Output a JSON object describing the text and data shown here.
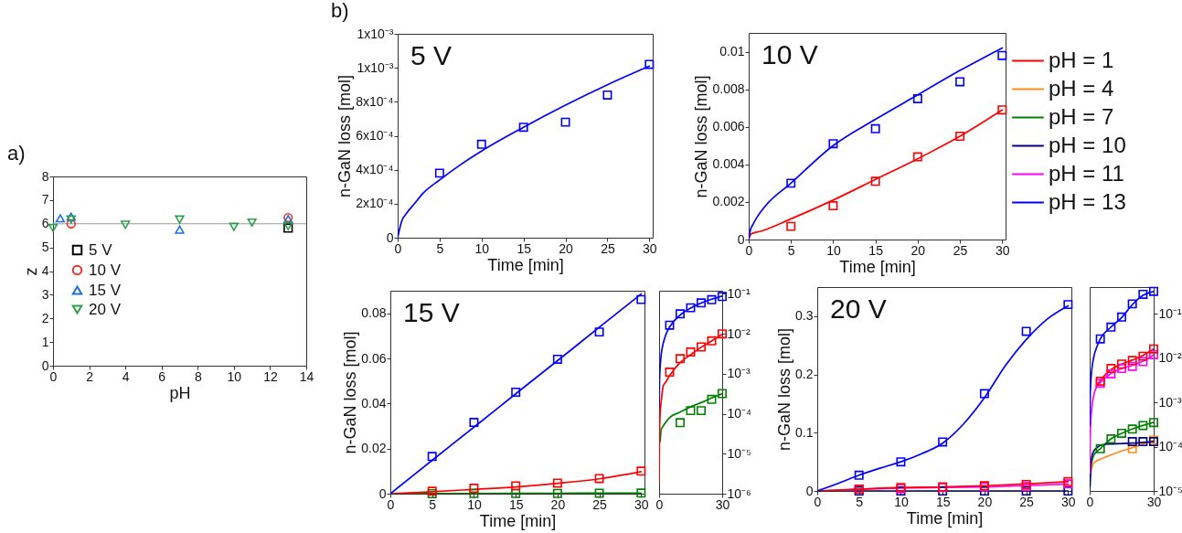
{
  "chart_data": [
    {
      "type": "scatter",
      "title": "a)",
      "xlabel": "pH",
      "ylabel": "z",
      "xlim": [
        0,
        14
      ],
      "xticks": [
        0,
        2,
        4,
        6,
        8,
        10,
        12,
        14
      ],
      "ylim": [
        0,
        8
      ],
      "yticks": [
        0,
        1,
        2,
        3,
        4,
        5,
        6,
        7,
        8
      ],
      "legend": "left",
      "ref_lines": [
        {
          "axis": "y",
          "value": 6,
          "color": "#9a9a9a"
        }
      ],
      "series": [
        {
          "name": "5 V",
          "color": "#000000",
          "marker": "square",
          "x": [
            13
          ],
          "values": [
            5.82
          ]
        },
        {
          "name": "10 V",
          "color": "#f03030",
          "marker": "circle",
          "x": [
            1,
            13
          ],
          "values": [
            6.0,
            6.26
          ]
        },
        {
          "name": "15 V",
          "color": "#1f6fe0",
          "marker": "triangle",
          "x": [
            0.4,
            1,
            7,
            13
          ],
          "values": [
            6.23,
            6.3,
            5.75,
            6.2
          ]
        },
        {
          "name": "20 V",
          "color": "#2ca048",
          "marker": "triangle-down",
          "x": [
            0,
            1,
            4,
            7,
            10,
            11,
            13
          ],
          "values": [
            5.82,
            6.18,
            5.96,
            6.18,
            5.87,
            6.05,
            5.9
          ]
        }
      ]
    },
    {
      "type": "line",
      "title": "b)",
      "xlabel": "Time [min]",
      "ylabel": "n-GaN loss [mol]",
      "annotations": [
        "5 V"
      ],
      "x": [
        5,
        10,
        15,
        20,
        25,
        30
      ],
      "xlim": [
        0,
        30.4
      ],
      "xticks": [
        0,
        5,
        10,
        15,
        20,
        25,
        30
      ],
      "ylim": [
        0,
        0.0012
      ],
      "yticks": [
        0,
        {
          "value": 0.0002,
          "label": "2x10⁻⁴"
        },
        {
          "value": 0.0004,
          "label": "4x10⁻⁴"
        },
        {
          "value": 0.0006,
          "label": "6x10⁻⁴"
        },
        {
          "value": 0.0008,
          "label": "8x10⁻⁴"
        },
        {
          "value": 0.001,
          "label": "1x10⁻³"
        },
        {
          "value": 0.0012,
          "label": "1x10⁻³"
        }
      ],
      "series": [
        {
          "color": "#0000ff",
          "x": [
            0,
            0.5,
            1,
            2,
            3,
            5,
            7.5,
            10,
            15,
            20,
            25,
            30
          ],
          "values": [
            0,
            0.0001,
            0.00014,
            0.0002,
            0.00026,
            0.00034,
            0.00043,
            0.00051,
            0.00065,
            0.00078,
            0.0009,
            0.00101
          ]
        },
        {
          "type": "scatter",
          "marker": "square",
          "color": "#0000ff",
          "values": [
            0.00038,
            0.00055,
            0.00065,
            0.00068,
            0.00084,
            0.00102
          ]
        }
      ]
    },
    {
      "type": "line",
      "xlabel": "Time [min]",
      "ylabel": "n-GaN loss [mol]",
      "annotations": [
        "10 V"
      ],
      "x": [
        5,
        10,
        15,
        20,
        25,
        30
      ],
      "xlim": [
        0,
        30.4
      ],
      "xticks": [
        0,
        5,
        10,
        15,
        20,
        25,
        30
      ],
      "ylim": [
        0,
        0.011
      ],
      "yticks": [
        0,
        0.002,
        0.004,
        0.006,
        0.008,
        0.01
      ],
      "series": [
        {
          "color": "#ff0000",
          "x": [
            0,
            0.3,
            1.5,
            5,
            10,
            15,
            20,
            25,
            30
          ],
          "values": [
            0,
            0.0003,
            0.00045,
            0.0011,
            0.0021,
            0.0032,
            0.0043,
            0.0055,
            0.0069
          ]
        },
        {
          "color": "#0000ff",
          "x": [
            0,
            0.2,
            0.5,
            1,
            2,
            5,
            10,
            15,
            20,
            25,
            30
          ],
          "values": [
            0,
            0.0005,
            0.0008,
            0.0012,
            0.0018,
            0.003,
            0.005,
            0.0064,
            0.0077,
            0.009,
            0.0102
          ]
        },
        {
          "type": "scatter",
          "marker": "square",
          "color": "#ff0000",
          "values": [
            0.0007,
            0.0018,
            0.0031,
            0.0044,
            0.0055,
            0.0069
          ]
        },
        {
          "type": "scatter",
          "marker": "square",
          "color": "#0000ff",
          "values": [
            0.003,
            0.0051,
            0.0059,
            0.0075,
            0.0084,
            0.0098
          ]
        }
      ]
    },
    {
      "type": "line",
      "xlabel": "Time [min]",
      "ylabel": "n-GaN loss [mol]",
      "annotations": [
        "15 V"
      ],
      "x": [
        5,
        10,
        15,
        20,
        25,
        30
      ],
      "xlim": [
        0,
        30.4
      ],
      "xticks": [
        0,
        5,
        10,
        15,
        20,
        25,
        30
      ],
      "ylim": [
        0,
        0.09
      ],
      "yticks": [
        0,
        0.02,
        0.04,
        0.06,
        0.08
      ],
      "series": [
        {
          "color": "#008000",
          "x": [
            0,
            5,
            10,
            15,
            20,
            25,
            30
          ],
          "values": [
            0,
            0.0001,
            0.0001,
            0.0002,
            0.0002,
            0.0003,
            0.0003
          ]
        },
        {
          "color": "#ff0000",
          "x": [
            0,
            5,
            10,
            15,
            20,
            25,
            30
          ],
          "values": [
            0,
            0.0009,
            0.0019,
            0.003,
            0.0046,
            0.0066,
            0.0098
          ]
        },
        {
          "color": "#0000ff",
          "x": [
            0,
            5,
            10,
            15,
            20,
            25,
            30
          ],
          "values": [
            0,
            0.0148,
            0.0295,
            0.0443,
            0.059,
            0.0738,
            0.0885
          ]
        },
        {
          "type": "scatter",
          "marker": "square",
          "color": "#008000",
          "values": [
            0,
            0.0001,
            0.0001,
            0.0001,
            0.0002,
            0.0003
          ]
        },
        {
          "type": "scatter",
          "marker": "square",
          "color": "#ff0000",
          "values": [
            0.0011,
            0.0024,
            0.0035,
            0.0047,
            0.0067,
            0.01
          ]
        },
        {
          "type": "scatter",
          "marker": "square",
          "color": "#0000ff",
          "values": [
            0.0165,
            0.0316,
            0.045,
            0.0596,
            0.0717,
            0.0861
          ]
        }
      ]
    },
    {
      "type": "line",
      "log": "y",
      "x": [
        5,
        10,
        15,
        20,
        25,
        30
      ],
      "xlim": [
        0,
        30
      ],
      "xticks": [
        0,
        30
      ],
      "ylim": [
        1e-06,
        0.12
      ],
      "yticks": [
        {
          "value": 0.1,
          "label": "10⁻¹"
        },
        {
          "value": 0.01,
          "label": "10⁻²"
        },
        {
          "value": 0.001,
          "label": "10⁻³"
        },
        {
          "value": 0.0001,
          "label": "10⁻⁴"
        },
        {
          "value": 1e-05,
          "label": "10⁻⁵"
        },
        {
          "value": 1e-06,
          "label": "10⁻⁶"
        }
      ],
      "series": [
        {
          "color": "#008000",
          "x": [
            0.5,
            1,
            2,
            5,
            10,
            15,
            20,
            25,
            30
          ],
          "values": [
            2e-05,
            4e-05,
            5e-05,
            8e-05,
            0.00011,
            0.00015,
            0.00019,
            0.00025,
            0.00032
          ]
        },
        {
          "color": "#ff0000",
          "x": [
            0.05,
            0.2,
            0.5,
            1,
            2,
            3,
            5,
            10,
            15,
            20,
            25,
            30
          ],
          "values": [
            2e-06,
            3e-05,
            0.0001,
            0.0002,
            0.0005,
            0.0006,
            0.0009,
            0.0019,
            0.003,
            0.0046,
            0.0066,
            0.0098
          ]
        },
        {
          "color": "#0000ff",
          "x": [
            0.05,
            0.2,
            0.5,
            1,
            2,
            3,
            5,
            10,
            15,
            20,
            25,
            30
          ],
          "values": [
            0.00015,
            0.0006,
            0.0015,
            0.003,
            0.0059,
            0.0089,
            0.0148,
            0.0295,
            0.0443,
            0.059,
            0.0738,
            0.0885
          ]
        },
        {
          "type": "scatter",
          "marker": "square",
          "color": "#008000",
          "values": [
            null,
            6e-05,
            0.00012,
            0.00012,
            0.00023,
            0.00032
          ]
        },
        {
          "type": "scatter",
          "marker": "square",
          "color": "#ff0000",
          "values": [
            0.0011,
            0.0024,
            0.0035,
            0.0047,
            0.0067,
            0.01
          ]
        },
        {
          "type": "scatter",
          "marker": "square",
          "color": "#0000ff",
          "values": [
            0.0165,
            0.0316,
            0.045,
            0.0596,
            0.0717,
            0.0861
          ]
        }
      ]
    },
    {
      "type": "line",
      "xlabel": "Time [min]",
      "ylabel": "n-GaN loss [mol]",
      "annotations": [
        "20 V"
      ],
      "x": [
        5,
        10,
        15,
        20,
        25,
        30
      ],
      "xlim": [
        0,
        30.4
      ],
      "xticks": [
        0,
        5,
        10,
        15,
        20,
        25,
        30
      ],
      "ylim": [
        0,
        0.35
      ],
      "yticks": [
        0,
        0.1,
        0.2,
        0.3
      ],
      "series": [
        {
          "color": "#000080",
          "x": [
            0,
            5,
            10,
            15,
            20,
            25,
            30
          ],
          "values": [
            0,
            0,
            0,
            0,
            0,
            0,
            0
          ]
        },
        {
          "color": "#ff00ff",
          "x": [
            0,
            5,
            10,
            15,
            20,
            25,
            30
          ],
          "values": [
            0,
            0.003,
            0.005,
            0.006,
            0.007,
            0.009,
            0.012
          ]
        },
        {
          "color": "#ff0000",
          "x": [
            0,
            5,
            10,
            15,
            20,
            25,
            30
          ],
          "values": [
            0,
            0.003,
            0.006,
            0.007,
            0.009,
            0.012,
            0.016
          ]
        },
        {
          "color": "#0000ff",
          "x": [
            0,
            2.5,
            5,
            7.5,
            10,
            12.5,
            15,
            17.5,
            20,
            22.5,
            25,
            27.5,
            30
          ],
          "values": [
            0,
            0.013,
            0.027,
            0.039,
            0.05,
            0.064,
            0.082,
            0.115,
            0.16,
            0.215,
            0.26,
            0.295,
            0.318
          ]
        },
        {
          "type": "scatter",
          "marker": "square",
          "color": "#000080",
          "values": [
            0,
            0,
            0,
            0,
            0,
            0
          ]
        },
        {
          "type": "scatter",
          "marker": "square",
          "color": "#ff00ff",
          "values": [
            0.003,
            0.004,
            0.006,
            0.007,
            0.008,
            0.012
          ]
        },
        {
          "type": "scatter",
          "marker": "square",
          "color": "#ff0000",
          "values": [
            0.003,
            0.006,
            0.007,
            0.009,
            0.011,
            0.016
          ]
        },
        {
          "type": "scatter",
          "marker": "square",
          "color": "#0000ff",
          "values": [
            0.027,
            0.05,
            0.084,
            0.167,
            0.274,
            0.32
          ]
        }
      ]
    },
    {
      "type": "line",
      "log": "y",
      "legend": "top",
      "x": [
        5,
        10,
        15,
        20,
        25,
        30
      ],
      "xlim": [
        0,
        30
      ],
      "xticks": [
        0,
        30
      ],
      "ylim": [
        1e-05,
        0.4
      ],
      "yticks": [
        {
          "value": 0.1,
          "label": "10⁻¹"
        },
        {
          "value": 0.01,
          "label": "10⁻²"
        },
        {
          "value": 0.001,
          "label": "10⁻³"
        },
        {
          "value": 0.0001,
          "label": "10⁻⁴"
        },
        {
          "value": 1e-05,
          "label": "10⁻⁵"
        }
      ],
      "series": [
        {
          "name": "pH = 1",
          "color": "#ff0000",
          "x": [
            3,
            5,
            10,
            15,
            20,
            25,
            30
          ],
          "values": [
            0.0023,
            0.0031,
            0.0055,
            0.0073,
            0.009,
            0.0115,
            0.016
          ]
        },
        {
          "name": "pH = 4",
          "color": "#ff8c1a",
          "x": [
            0.5,
            1,
            2,
            5,
            10,
            15,
            20,
            25,
            30
          ],
          "values": [
            2.5e-05,
            3.3e-05,
            4.3e-05,
            5.2e-05,
            6.5e-05,
            8e-05,
            9.5e-05,
            0.000115,
            0.00014
          ]
        },
        {
          "name": "pH = 7",
          "color": "#008000",
          "x": [
            0.1,
            0.5,
            1,
            2,
            5,
            10,
            15,
            20,
            25,
            30
          ],
          "values": [
            1.2e-05,
            3e-05,
            4.5e-05,
            6.5e-05,
            9e-05,
            0.00015,
            0.0002,
            0.00025,
            0.0003,
            0.00035
          ]
        },
        {
          "name": "pH = 10",
          "color": "#000080",
          "x": [
            0.1,
            0.5,
            1,
            2,
            4,
            6,
            10,
            20,
            30
          ],
          "values": [
            1.2e-05,
            4e-05,
            6e-05,
            8e-05,
            0.0001,
            0.00011,
            0.000115,
            0.00012,
            0.00013
          ]
        },
        {
          "name": "pH = 11",
          "color": "#ff00ff",
          "x": [
            0.05,
            0.2,
            0.5,
            1,
            2,
            3,
            5,
            10,
            15,
            20,
            25,
            30
          ],
          "values": [
            2.5e-05,
            0.00013,
            0.00036,
            0.00075,
            0.0015,
            0.0021,
            0.0028,
            0.0045,
            0.0058,
            0.0068,
            0.0085,
            0.0118
          ]
        },
        {
          "name": "pH = 13",
          "color": "#0000ff",
          "x": [
            0.05,
            0.2,
            0.5,
            1,
            2,
            3,
            5,
            10,
            15,
            20,
            25,
            30
          ],
          "values": [
            0.0003,
            0.0012,
            0.0028,
            0.0055,
            0.011,
            0.016,
            0.027,
            0.05,
            0.082,
            0.16,
            0.26,
            0.318
          ]
        },
        {
          "type": "scatter",
          "marker": "square",
          "color": "#ff8c1a",
          "values": [
            null,
            null,
            null,
            9e-05,
            null,
            0.00014
          ]
        },
        {
          "type": "scatter",
          "marker": "square",
          "color": "#008000",
          "values": [
            9e-05,
            0.00015,
            0.0002,
            0.00025,
            0.0003,
            0.00035
          ]
        },
        {
          "type": "scatter",
          "marker": "square",
          "color": "#000080",
          "values": [
            null,
            null,
            null,
            0.00013,
            0.00013,
            0.00013
          ]
        },
        {
          "type": "scatter",
          "marker": "square",
          "color": "#ff00ff",
          "values": [
            0.0027,
            0.0044,
            0.0058,
            0.0065,
            0.0083,
            0.0119
          ]
        },
        {
          "type": "scatter",
          "marker": "square",
          "color": "#ff0000",
          "values": [
            0.003,
            0.0058,
            0.0073,
            0.0088,
            0.011,
            0.016
          ]
        },
        {
          "type": "scatter",
          "marker": "square",
          "color": "#0000ff",
          "values": [
            0.027,
            0.05,
            0.084,
            0.167,
            0.274,
            0.32
          ]
        }
      ]
    }
  ]
}
